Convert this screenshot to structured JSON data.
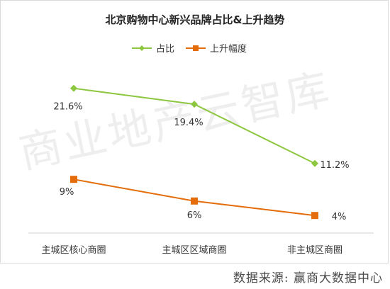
{
  "chart_data": {
    "type": "line",
    "title": "北京购物中心新兴品牌占比&上升趋势",
    "categories": [
      "主城区核心商圈",
      "主城区区域商圈",
      "非主城区商圈"
    ],
    "series": [
      {
        "name": "占比",
        "values": [
          21.6,
          19.4,
          11.2
        ],
        "labels": [
          "21.6%",
          "19.4%",
          "11.2%"
        ],
        "color": "#8dc63f",
        "marker": "diamond"
      },
      {
        "name": "上升幅度",
        "values": [
          9,
          6,
          4
        ],
        "labels": [
          "9%",
          "6%",
          "4%"
        ],
        "color": "#e46c0a",
        "marker": "square"
      }
    ],
    "legend": "top-center",
    "grid": false,
    "ylim": [
      0,
      25
    ]
  },
  "watermark_text": "商业地产云智库",
  "source_text": "数据来源: 赢商大数据中心"
}
